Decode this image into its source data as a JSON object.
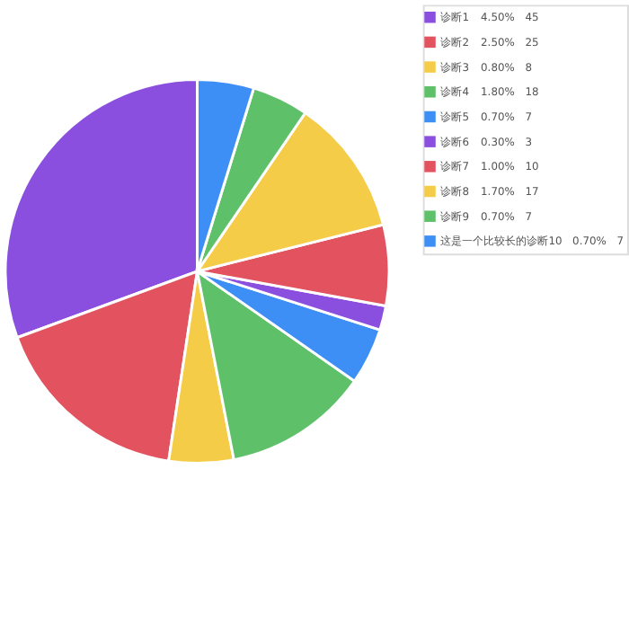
{
  "chart_data": {
    "type": "pie",
    "categories": [
      "诊断1",
      "诊断2",
      "诊断3",
      "诊断4",
      "诊断5",
      "诊断6",
      "诊断7",
      "诊断8",
      "诊断9",
      "这是一个比较长的诊断10"
    ],
    "values": [
      45,
      25,
      8,
      18,
      7,
      3,
      10,
      17,
      7,
      7
    ],
    "value_labels": [
      "45",
      "25",
      "8",
      "18",
      "7",
      "3",
      "10",
      "17",
      "7",
      "7"
    ],
    "annotations": [
      "4.50%",
      "2.50%",
      "0.80%",
      "1.80%",
      "0.70%",
      "0.30%",
      "1.00%",
      "1.70%",
      "0.70%",
      "0.70%"
    ],
    "colors": [
      "#8a4fdf",
      "#e2525f",
      "#f5cc48",
      "#5ec169",
      "#3d8ef5",
      "#8a4fdf",
      "#e2525f",
      "#f5cc48",
      "#5ec169",
      "#3d8ef5"
    ],
    "legend": "right"
  }
}
